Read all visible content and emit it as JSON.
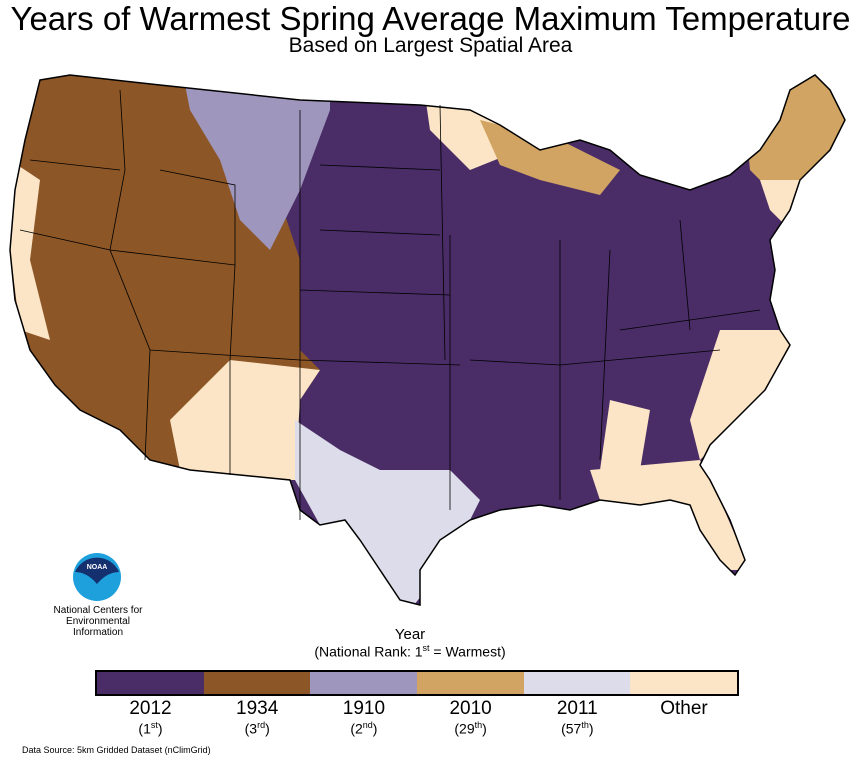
{
  "title": "Years of Warmest Spring Average Maximum Temperature",
  "subtitle": "Based on Largest Spatial Area",
  "logo": {
    "badge": "NOAA",
    "lines": [
      "National Centers for",
      "Environmental",
      "Information"
    ]
  },
  "legend": {
    "title": "Year",
    "subtitle_pre": "(National Rank: 1",
    "subtitle_sup": "st",
    "subtitle_post": " = Warmest)",
    "items": [
      {
        "year": "2012",
        "rank": "1",
        "suffix": "st",
        "color": "#4a2d66"
      },
      {
        "year": "1934",
        "rank": "3",
        "suffix": "rd",
        "color": "#8c5626"
      },
      {
        "year": "1910",
        "rank": "2",
        "suffix": "nd",
        "color": "#9f96bd"
      },
      {
        "year": "2010",
        "rank": "29",
        "suffix": "th",
        "color": "#d2a464"
      },
      {
        "year": "2011",
        "rank": "57",
        "suffix": "th",
        "color": "#dcdcea"
      },
      {
        "year": "Other",
        "color": "#fbe5c6"
      }
    ]
  },
  "source": "Data Source: 5km Gridded Dataset (nClimGrid)"
}
